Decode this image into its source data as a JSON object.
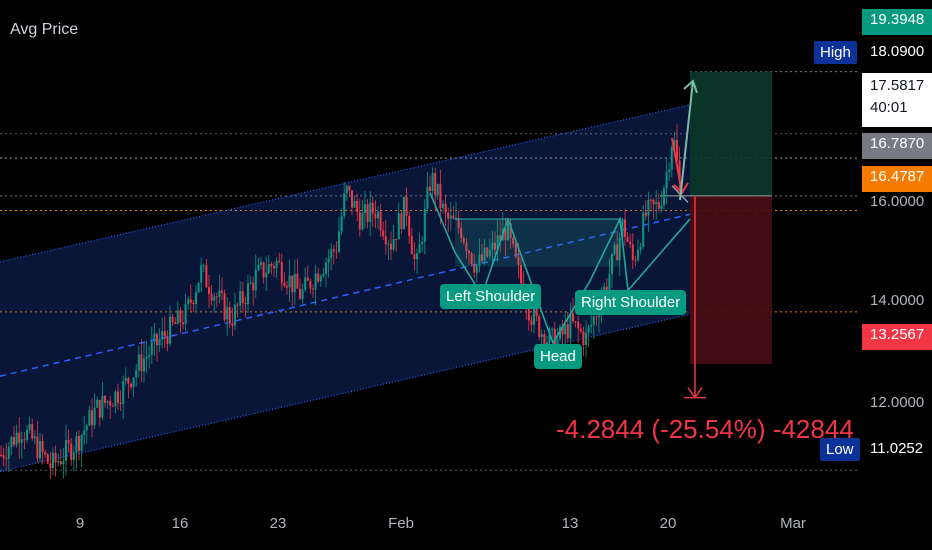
{
  "symbol_label": "Avg Price",
  "colors": {
    "background": "#000000",
    "up": "#089981",
    "down": "#f23645",
    "channel": "#2962ff",
    "pattern": "#26a69a",
    "orange": "#f57c00"
  },
  "chart_data": {
    "type": "candlestick",
    "ylim": [
      10.4,
      20.9
    ],
    "y_ticks": [
      "16.0000",
      "14.0000",
      "12.0000"
    ],
    "x_ticks": [
      "9",
      "16",
      "23",
      "Feb",
      "13",
      "20",
      "Mar"
    ],
    "path": [
      [
        0,
        11.35
      ],
      [
        20,
        11.9
      ],
      [
        30,
        11.7
      ],
      [
        50,
        11.1
      ],
      [
        75,
        11.6
      ],
      [
        95,
        12.3
      ],
      [
        120,
        12.7
      ],
      [
        140,
        13.3
      ],
      [
        165,
        13.9
      ],
      [
        185,
        14.3
      ],
      [
        200,
        15.2
      ],
      [
        215,
        14.7
      ],
      [
        230,
        14.2
      ],
      [
        255,
        15.1
      ],
      [
        275,
        15.4
      ],
      [
        300,
        14.7
      ],
      [
        320,
        15.3
      ],
      [
        335,
        15.7
      ],
      [
        345,
        16.9
      ],
      [
        360,
        16.3
      ],
      [
        375,
        16.5
      ],
      [
        390,
        15.8
      ],
      [
        405,
        16.6
      ],
      [
        415,
        15.2
      ],
      [
        430,
        17.2
      ],
      [
        445,
        16.3
      ],
      [
        460,
        16.1
      ],
      [
        475,
        15.3
      ],
      [
        490,
        15.6
      ],
      [
        505,
        16.1
      ],
      [
        518,
        15.1
      ],
      [
        530,
        14.3
      ],
      [
        545,
        13.8
      ],
      [
        555,
        13.7
      ],
      [
        570,
        14.1
      ],
      [
        585,
        13.8
      ],
      [
        600,
        14.6
      ],
      [
        615,
        15.6
      ],
      [
        622,
        16.2
      ],
      [
        632,
        15.4
      ],
      [
        645,
        16.4
      ],
      [
        658,
        16.6
      ],
      [
        665,
        17.2
      ],
      [
        672,
        18.1
      ],
      [
        680,
        16.8
      ]
    ],
    "channel": {
      "upper": [
        [
          0,
          15.4
        ],
        [
          690,
          18.7
        ]
      ],
      "median": [
        [
          0,
          13.0
        ],
        [
          690,
          16.4
        ]
      ],
      "lower": [
        [
          0,
          11.0
        ],
        [
          690,
          14.3
        ]
      ]
    },
    "annotations": [
      "Left Shoulder",
      "Head",
      "Right Shoulder"
    ],
    "position": {
      "entry": 16.787,
      "target": 19.3948,
      "stop": 13.2567,
      "measure": "-4.2844 (-25.54%) -42844"
    },
    "price_labels": {
      "top_target": "19.3948",
      "high_label": "High",
      "high": "18.0900",
      "last": "17.5817",
      "countdown": "40:01",
      "entry": "16.7870",
      "orange_line": "16.4787",
      "stop": "13.2567",
      "low_label": "Low",
      "low": "11.0252"
    }
  }
}
